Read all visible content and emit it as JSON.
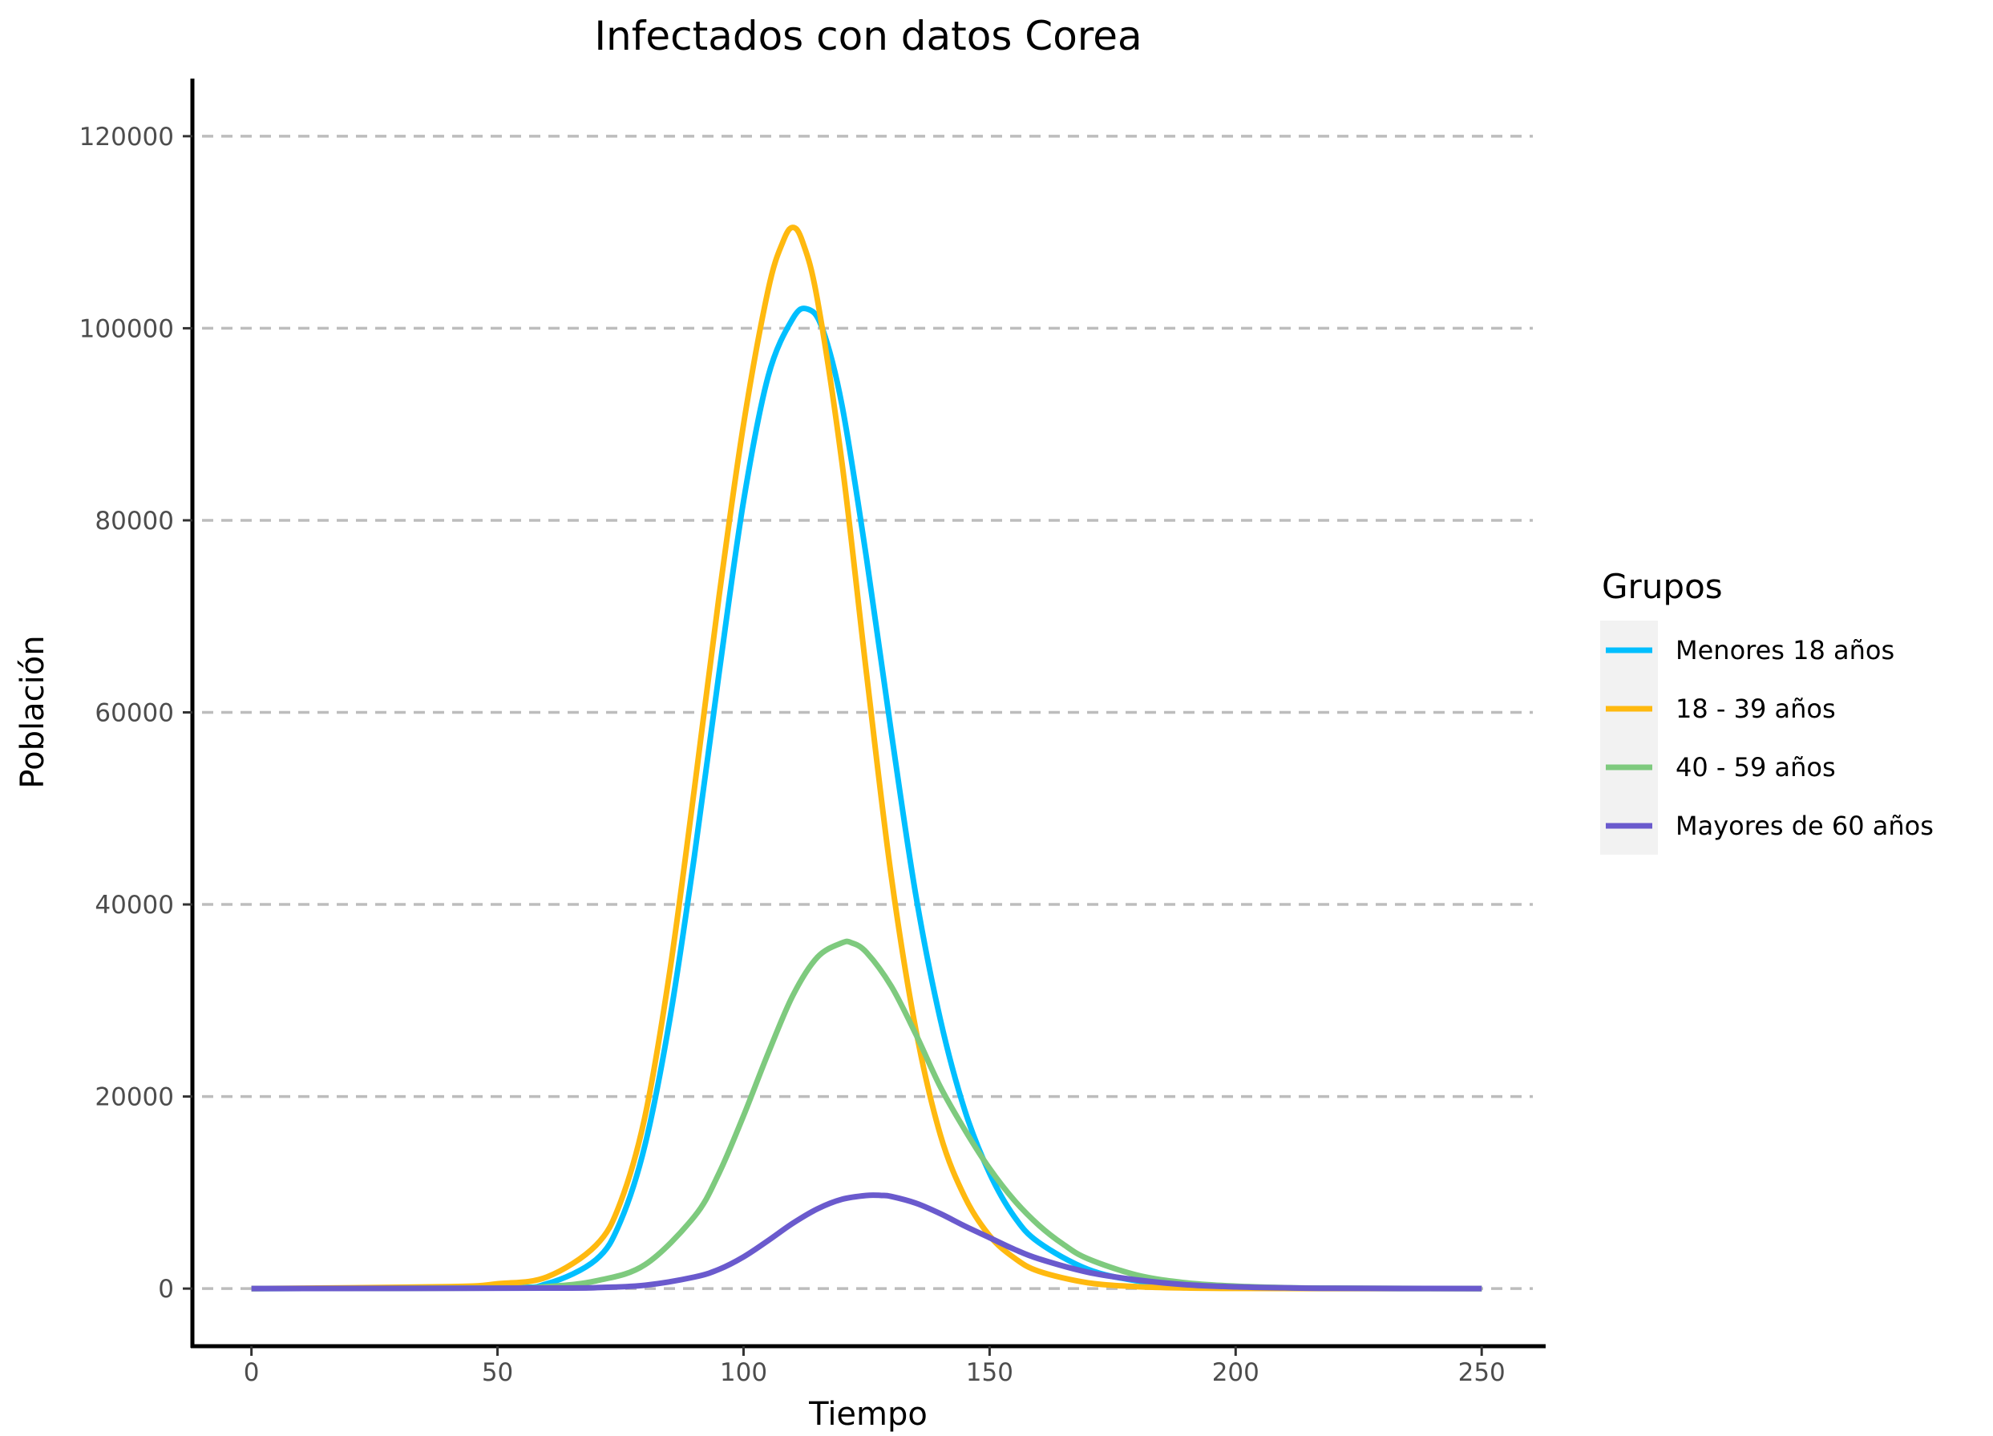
{
  "chart_data": {
    "type": "line",
    "title": "Infectados con datos Corea",
    "xlabel": "Tiempo",
    "ylabel": "Población",
    "xlim": [
      -12,
      263
    ],
    "ylim": [
      -6000,
      126000
    ],
    "x_ticks": [
      0,
      50,
      100,
      150,
      200,
      250
    ],
    "y_ticks": [
      0,
      20000,
      40000,
      60000,
      80000,
      100000,
      120000
    ],
    "grid": "horizontal-dashed",
    "legend": {
      "title": "Grupos",
      "position": "right"
    },
    "series": [
      {
        "name": "Menores 18 años",
        "color": "#00BFFF",
        "x": [
          0,
          50,
          60,
          70,
          75,
          80,
          85,
          90,
          95,
          100,
          105,
          110,
          113,
          116,
          120,
          125,
          130,
          135,
          140,
          145,
          150,
          155,
          160,
          170,
          180,
          190,
          200,
          220,
          250
        ],
        "y": [
          0,
          100,
          500,
          3000,
          7000,
          15000,
          28000,
          45000,
          64000,
          82000,
          95000,
          101000,
          102000,
          100000,
          92000,
          76000,
          58000,
          41000,
          28000,
          18500,
          12000,
          7500,
          4800,
          2000,
          800,
          300,
          120,
          20,
          0
        ]
      },
      {
        "name": "18 - 39 años",
        "color": "#FFB90F",
        "x": [
          0,
          40,
          50,
          60,
          70,
          75,
          80,
          85,
          90,
          95,
          100,
          105,
          108,
          110,
          112,
          115,
          120,
          125,
          130,
          135,
          140,
          145,
          150,
          155,
          160,
          170,
          180,
          190,
          200,
          220,
          250
        ],
        "y": [
          0,
          200,
          500,
          1200,
          4500,
          9000,
          18000,
          33000,
          52000,
          72000,
          90000,
          104000,
          109000,
          110500,
          109000,
          103000,
          86000,
          64000,
          43000,
          27000,
          16000,
          9500,
          5500,
          3200,
          1800,
          600,
          200,
          60,
          20,
          0,
          0
        ]
      },
      {
        "name": "40 - 59 años",
        "color": "#7ECA7E",
        "x": [
          0,
          50,
          60,
          70,
          80,
          90,
          95,
          100,
          105,
          110,
          115,
          120,
          122,
          125,
          130,
          135,
          140,
          145,
          150,
          155,
          160,
          165,
          170,
          180,
          190,
          200,
          210,
          220,
          250
        ],
        "y": [
          0,
          50,
          200,
          800,
          2500,
          7500,
          12000,
          18000,
          24500,
          30500,
          34500,
          36000,
          36000,
          35000,
          31500,
          26500,
          21000,
          16500,
          12500,
          9200,
          6600,
          4600,
          3100,
          1400,
          600,
          250,
          100,
          40,
          0
        ]
      },
      {
        "name": "Mayores de 60 años",
        "color": "#6A5ACD",
        "x": [
          0,
          60,
          70,
          80,
          90,
          95,
          100,
          105,
          110,
          115,
          120,
          125,
          128,
          130,
          135,
          140,
          145,
          150,
          155,
          160,
          170,
          180,
          190,
          200,
          210,
          220,
          250
        ],
        "y": [
          0,
          50,
          100,
          350,
          1200,
          2000,
          3300,
          5000,
          6800,
          8300,
          9300,
          9700,
          9700,
          9600,
          8900,
          7800,
          6500,
          5300,
          4100,
          3100,
          1700,
          900,
          400,
          180,
          80,
          30,
          0
        ]
      }
    ]
  }
}
